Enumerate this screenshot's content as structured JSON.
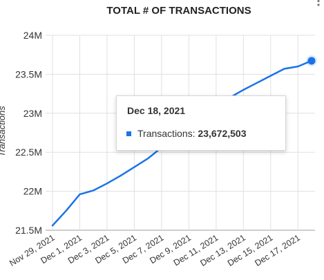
{
  "chart_data": {
    "type": "line",
    "title": "TOTAL # OF TRANSACTIONS",
    "ylabel": "Transactions",
    "xlabel": "",
    "x": [
      "Nov 29, 2021",
      "Nov 30, 2021",
      "Dec 1, 2021",
      "Dec 2, 2021",
      "Dec 3, 2021",
      "Dec 4, 2021",
      "Dec 5, 2021",
      "Dec 6, 2021",
      "Dec 7, 2021",
      "Dec 8, 2021",
      "Dec 9, 2021",
      "Dec 10, 2021",
      "Dec 11, 2021",
      "Dec 12, 2021",
      "Dec 13, 2021",
      "Dec 14, 2021",
      "Dec 15, 2021",
      "Dec 16, 2021",
      "Dec 17, 2021",
      "Dec 18, 2021"
    ],
    "x_tick_labels": [
      "Nov 29, 2021",
      "Dec 1, 2021",
      "Dec 3, 2021",
      "Dec 5, 2021",
      "Dec 7, 2021",
      "Dec 9, 2021",
      "Dec 11, 2021",
      "Dec 13, 2021",
      "Dec 15, 2021",
      "Dec 17, 2021"
    ],
    "y_ticks": [
      21500000,
      22000000,
      22500000,
      23000000,
      23500000,
      24000000
    ],
    "y_tick_labels": [
      "21.5M",
      "22M",
      "22.5M",
      "23M",
      "23.5M",
      "24M"
    ],
    "ylim": [
      21500000,
      24000000
    ],
    "grid": true,
    "legend": "none",
    "series": [
      {
        "name": "Transactions",
        "color": "#1a73e8",
        "values": [
          21560000,
          21750000,
          21960000,
          22010000,
          22100000,
          22200000,
          22310000,
          22420000,
          22560000,
          22700000,
          22830000,
          22960000,
          23080000,
          23200000,
          23300000,
          23390000,
          23480000,
          23570000,
          23600000,
          23672503
        ]
      }
    ],
    "highlight": {
      "index": 19
    },
    "tooltip": {
      "date": "Dec 18, 2021",
      "series_label": "Transactions:",
      "value": "23,672,503"
    }
  }
}
